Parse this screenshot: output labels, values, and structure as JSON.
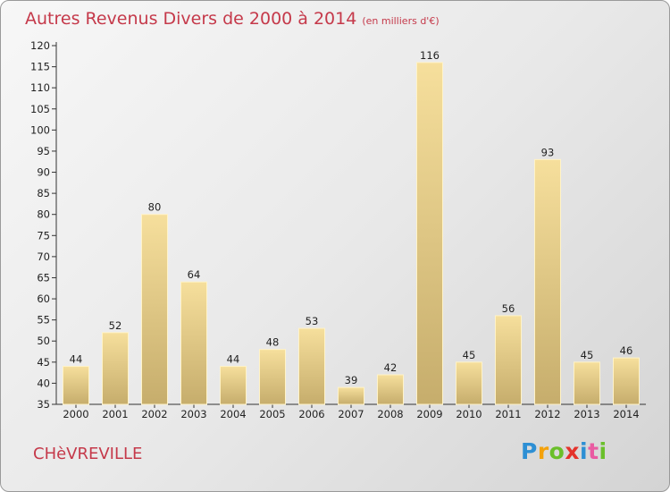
{
  "title": "Autres Revenus Divers de 2000 à 2014",
  "subtitle": "(en milliers d'€)",
  "commune": "CHèVREVILLE",
  "brand": {
    "letters": [
      "P",
      "r",
      "o",
      "x",
      "i",
      "t",
      "i"
    ],
    "colors": [
      "#2d8fd4",
      "#f4a20b",
      "#6abf2a",
      "#e4322b",
      "#2d8fd4",
      "#e95ba2",
      "#6abf2a"
    ]
  },
  "chart_data": {
    "type": "bar",
    "categories": [
      "2000",
      "2001",
      "2002",
      "2003",
      "2004",
      "2005",
      "2006",
      "2007",
      "2008",
      "2009",
      "2010",
      "2011",
      "2012",
      "2013",
      "2014"
    ],
    "values": [
      44,
      52,
      80,
      64,
      44,
      48,
      53,
      39,
      42,
      116,
      45,
      56,
      93,
      45,
      46
    ],
    "ylim": [
      35,
      120
    ],
    "yticks": [
      35,
      40,
      45,
      50,
      55,
      60,
      65,
      70,
      75,
      80,
      85,
      90,
      95,
      100,
      105,
      110,
      115,
      120
    ],
    "grid": false,
    "bar_color": "#ecd38a"
  }
}
